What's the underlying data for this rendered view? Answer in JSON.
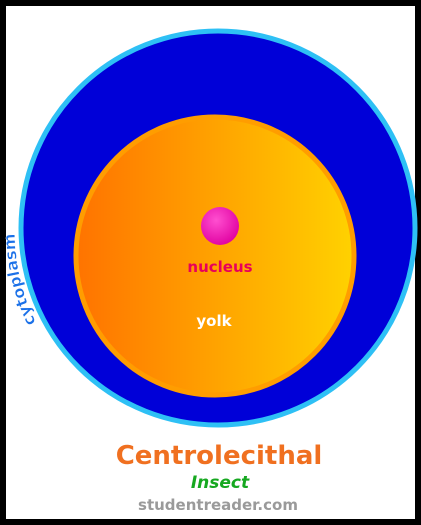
{
  "labels": {
    "cytoplasm": "cytoplasm",
    "nucleus": "nucleus",
    "yolk": "yolk"
  },
  "caption": {
    "title": "Centrolecithal",
    "subtitle": "Insect",
    "source": "studentreader.com"
  }
}
